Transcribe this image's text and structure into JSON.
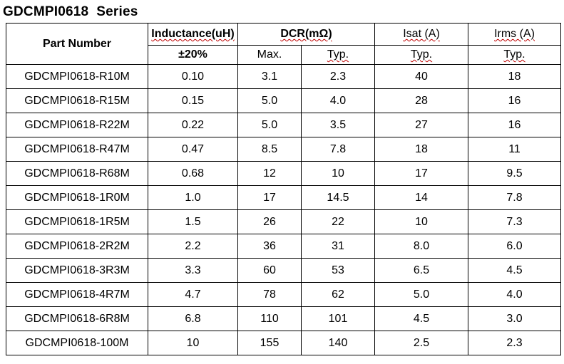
{
  "title": "GDCMPI0618  Series",
  "header": {
    "part_number": "Part Number",
    "inductance": "Inductance(uH)",
    "inductance_tol": "±20%",
    "dcr": "DCR(mΩ)",
    "dcr_max": "Max.",
    "dcr_typ": "Typ.",
    "isat": "Isat (A)",
    "isat_typ": "Typ.",
    "irms": "Irms (A)",
    "irms_typ": "Typ."
  },
  "rows": [
    {
      "part": "GDCMPI0618-R10M",
      "l": "0.10",
      "dcr_max": "3.1",
      "dcr_typ": "2.3",
      "isat": "40",
      "irms": "18"
    },
    {
      "part": "GDCMPI0618-R15M",
      "l": "0.15",
      "dcr_max": "5.0",
      "dcr_typ": "4.0",
      "isat": "28",
      "irms": "16"
    },
    {
      "part": "GDCMPI0618-R22M",
      "l": "0.22",
      "dcr_max": "5.0",
      "dcr_typ": "3.5",
      "isat": "27",
      "irms": "16"
    },
    {
      "part": "GDCMPI0618-R47M",
      "l": "0.47",
      "dcr_max": "8.5",
      "dcr_typ": "7.8",
      "isat": "18",
      "irms": "11"
    },
    {
      "part": "GDCMPI0618-R68M",
      "l": "0.68",
      "dcr_max": "12",
      "dcr_typ": "10",
      "isat": "17",
      "irms": "9.5"
    },
    {
      "part": "GDCMPI0618-1R0M",
      "l": "1.0",
      "dcr_max": "17",
      "dcr_typ": "14.5",
      "isat": "14",
      "irms": "7.8"
    },
    {
      "part": "GDCMPI0618-1R5M",
      "l": "1.5",
      "dcr_max": "26",
      "dcr_typ": "22",
      "isat": "10",
      "irms": "7.3"
    },
    {
      "part": "GDCMPI0618-2R2M",
      "l": "2.2",
      "dcr_max": "36",
      "dcr_typ": "31",
      "isat": "8.0",
      "irms": "6.0"
    },
    {
      "part": "GDCMPI0618-3R3M",
      "l": "3.3",
      "dcr_max": "60",
      "dcr_typ": "53",
      "isat": "6.5",
      "irms": "4.5"
    },
    {
      "part": "GDCMPI0618-4R7M",
      "l": "4.7",
      "dcr_max": "78",
      "dcr_typ": "62",
      "isat": "5.0",
      "irms": "4.0"
    },
    {
      "part": "GDCMPI0618-6R8M",
      "l": "6.8",
      "dcr_max": "110",
      "dcr_typ": "101",
      "isat": "4.5",
      "irms": "3.0"
    },
    {
      "part": "GDCMPI0618-100M",
      "l": "10",
      "dcr_max": "155",
      "dcr_typ": "140",
      "isat": "2.5",
      "irms": "2.3"
    }
  ]
}
